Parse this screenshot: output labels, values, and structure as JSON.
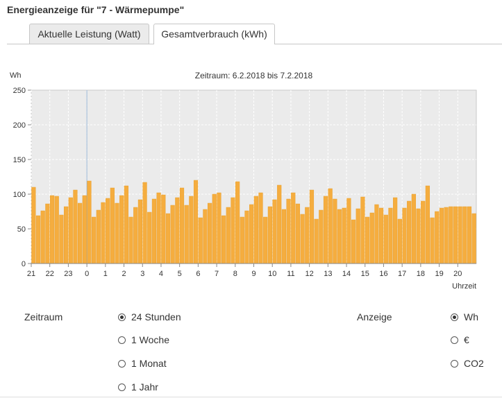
{
  "header": {
    "title": "Energieanzeige für \"7 - Wärmepumpe\""
  },
  "tabs": [
    {
      "label": "Aktuelle Leistung (Watt)",
      "active": false
    },
    {
      "label": "Gesamtverbrauch (kWh)",
      "active": true
    }
  ],
  "colors": {
    "bar": "#f5ad3f",
    "bar_stroke": "#e9a02c",
    "plot_bg": "#ebebeb",
    "marker_line": "#9bb8d8"
  },
  "chart_data": {
    "type": "bar",
    "title": "Zeitraum: 6.2.2018 bis 7.2.2018",
    "ylabel": "Wh",
    "xlabel": "Uhrzeit",
    "ylim": [
      0,
      250
    ],
    "yticks": [
      "0",
      "50",
      "100",
      "150",
      "200",
      "250"
    ],
    "xticks": [
      "22",
      "23",
      "0",
      "1",
      "2",
      "3",
      "4",
      "5",
      "6",
      "7",
      "8",
      "9",
      "10",
      "11",
      "12",
      "13",
      "14",
      "15",
      "16",
      "17",
      "18",
      "19",
      "20",
      "21"
    ],
    "grid": true,
    "interval_minutes": 15,
    "series": [
      {
        "values": [
          110,
          69,
          76,
          86,
          98,
          97,
          70,
          82,
          95,
          106,
          87,
          98,
          119,
          67,
          77,
          88,
          94,
          109,
          87,
          98,
          112,
          67,
          81,
          92,
          117,
          74,
          93,
          102,
          99,
          72,
          84,
          95,
          109,
          84,
          97,
          120,
          66,
          78,
          87,
          100,
          102,
          69,
          81,
          95,
          118,
          67,
          76,
          85,
          97,
          102,
          67,
          82,
          92,
          113,
          78,
          93,
          102,
          86,
          71,
          81,
          106,
          64,
          77,
          97,
          108,
          93,
          78,
          80,
          94,
          63,
          79,
          96,
          67,
          73,
          85,
          80,
          70,
          80,
          95,
          64,
          80,
          90,
          100,
          79,
          90,
          112,
          66,
          75,
          80,
          81,
          82,
          82,
          82,
          82,
          82,
          72
        ]
      }
    ]
  },
  "form": {
    "period_label": "Zeitraum",
    "period_options": [
      {
        "label": "24 Stunden",
        "checked": true
      },
      {
        "label": "1 Woche",
        "checked": false
      },
      {
        "label": "1 Monat",
        "checked": false
      },
      {
        "label": "1 Jahr",
        "checked": false
      }
    ],
    "display_label": "Anzeige",
    "display_options": [
      {
        "label": "Wh",
        "checked": true
      },
      {
        "label": "€",
        "checked": false
      },
      {
        "label": "CO2",
        "checked": false
      }
    ]
  }
}
